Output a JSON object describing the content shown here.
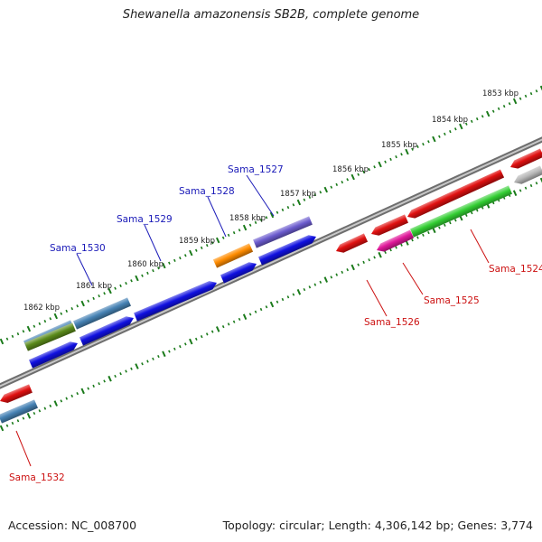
{
  "title": "Shewanella amazonensis SB2B, complete genome",
  "accession": "Accession: NC_008700",
  "summary": "Topology: circular; Length: 4,306,142 bp; Genes: 3,774",
  "tick_labels": [
    "1853 kbp",
    "1854 kbp",
    "1855 kbp",
    "1856 kbp",
    "1857 kbp",
    "1858 kbp",
    "1859 kbp",
    "1860 kbp",
    "1861 kbp",
    "1862 kbp"
  ],
  "gene_labels_top": [
    "Sama_1527",
    "Sama_1528",
    "Sama_1529",
    "Sama_1530"
  ],
  "gene_labels_bottom": [
    "Sama_1524",
    "Sama_1525",
    "Sama_1526",
    "Sama_1532"
  ],
  "colors": {
    "label_top": "#1a1ab8",
    "label_bottom": "#cc1111",
    "ticks": "#1a7a1a",
    "backbone": "#8a8a8a",
    "blue": "#1010e0",
    "steel_blue": "#4682b4",
    "olive": "#5a8a1a",
    "orange": "#ff8c00",
    "purple": "#6a5acd",
    "red": "#e01010",
    "green": "#32cd32",
    "magenta": "#e0189a",
    "grey": "#b8b8b8"
  }
}
